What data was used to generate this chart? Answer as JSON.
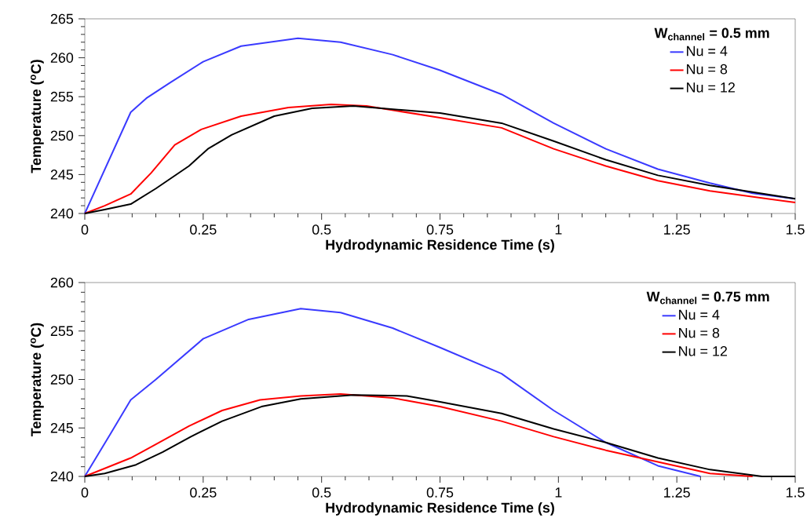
{
  "chart_data": [
    {
      "type": "line",
      "xlabel": "Hydrodynamic Residence Time (s)",
      "ylabel": "Temperature ($^{o}$C)",
      "legend_title": "W$_{channel}$ = 0.5 mm",
      "legend": "top right",
      "line_style": "solid",
      "xlim": [
        0,
        1.5
      ],
      "xticks": [
        0,
        0.25,
        0.5,
        0.75,
        1,
        1.25,
        1.5
      ],
      "ylim": [
        240,
        265
      ],
      "yticks": [
        240,
        245,
        250,
        255,
        260,
        265
      ],
      "series": [
        {
          "name": "Nu = 4",
          "color": "#3a3aff",
          "x": [
            0,
            0.097,
            0.13,
            0.18,
            0.25,
            0.33,
            0.45,
            0.54,
            0.65,
            0.75,
            0.88,
            0.99,
            1.1,
            1.21,
            1.32,
            1.41,
            1.5
          ],
          "values": [
            240,
            253,
            254.8,
            256.8,
            259.5,
            261.5,
            262.5,
            262,
            260.4,
            258.4,
            255.3,
            251.6,
            248.3,
            245.7,
            243.9,
            242.6,
            241.9
          ]
        },
        {
          "name": "Nu = 8",
          "color": "#ff0000",
          "x": [
            0,
            0.042,
            0.097,
            0.14,
            0.19,
            0.246,
            0.33,
            0.43,
            0.52,
            0.595,
            0.75,
            0.88,
            0.99,
            1.1,
            1.21,
            1.32,
            1.5
          ],
          "values": [
            240,
            241,
            242.5,
            245.2,
            248.8,
            250.8,
            252.5,
            253.6,
            254,
            253.8,
            252.3,
            251,
            248.3,
            246.1,
            244.2,
            242.9,
            241.4
          ]
        },
        {
          "name": "Nu = 12",
          "color": "#000000",
          "x": [
            0,
            0.042,
            0.097,
            0.15,
            0.22,
            0.26,
            0.31,
            0.4,
            0.48,
            0.567,
            0.75,
            0.88,
            0.99,
            1.1,
            1.21,
            1.32,
            1.5
          ],
          "values": [
            240,
            240.5,
            241.2,
            243.2,
            246.1,
            248.3,
            250.1,
            252.5,
            253.5,
            253.8,
            252.9,
            251.6,
            249.3,
            246.9,
            244.9,
            243.6,
            241.9
          ]
        }
      ]
    },
    {
      "type": "line",
      "xlabel": "Hydrodynamic Residence Time (s)",
      "ylabel": "Temperature ($^{o}$C)",
      "legend_title": "W$_{channel}$ = 0.75 mm",
      "legend": "top right",
      "line_style": "solid",
      "xlim": [
        0,
        1.5
      ],
      "xticks": [
        0,
        0.25,
        0.5,
        0.75,
        1,
        1.25,
        1.5
      ],
      "ylim": [
        240,
        260
      ],
      "yticks": [
        240,
        245,
        250,
        255,
        260
      ],
      "series": [
        {
          "name": "Nu = 4",
          "color": "#3a3aff",
          "x": [
            0,
            0.053,
            0.097,
            0.15,
            0.25,
            0.346,
            0.456,
            0.54,
            0.65,
            0.75,
            0.88,
            0.99,
            1.1,
            1.21,
            1.3
          ],
          "values": [
            240,
            244.3,
            247.9,
            250,
            254.2,
            256.2,
            257.3,
            256.9,
            255.3,
            253.3,
            250.6,
            246.8,
            243.5,
            241.1,
            240
          ]
        },
        {
          "name": "Nu = 8",
          "color": "#ff0000",
          "x": [
            0,
            0.097,
            0.15,
            0.22,
            0.29,
            0.37,
            0.456,
            0.54,
            0.65,
            0.75,
            0.88,
            0.99,
            1.1,
            1.21,
            1.32,
            1.41
          ],
          "values": [
            240,
            241.9,
            243.3,
            245.2,
            246.8,
            247.9,
            248.3,
            248.5,
            248.1,
            247.2,
            245.7,
            244.1,
            242.7,
            241.5,
            240.3,
            240
          ]
        },
        {
          "name": "Nu = 12",
          "color": "#000000",
          "x": [
            0,
            0.042,
            0.108,
            0.164,
            0.224,
            0.29,
            0.373,
            0.456,
            0.567,
            0.68,
            0.75,
            0.88,
            0.99,
            1.1,
            1.21,
            1.32,
            1.43,
            1.5
          ],
          "values": [
            240,
            240.3,
            241.2,
            242.5,
            244.1,
            245.7,
            247.2,
            248,
            248.4,
            248.3,
            247.7,
            246.5,
            244.9,
            243.5,
            241.9,
            240.7,
            240,
            240
          ]
        }
      ]
    }
  ]
}
